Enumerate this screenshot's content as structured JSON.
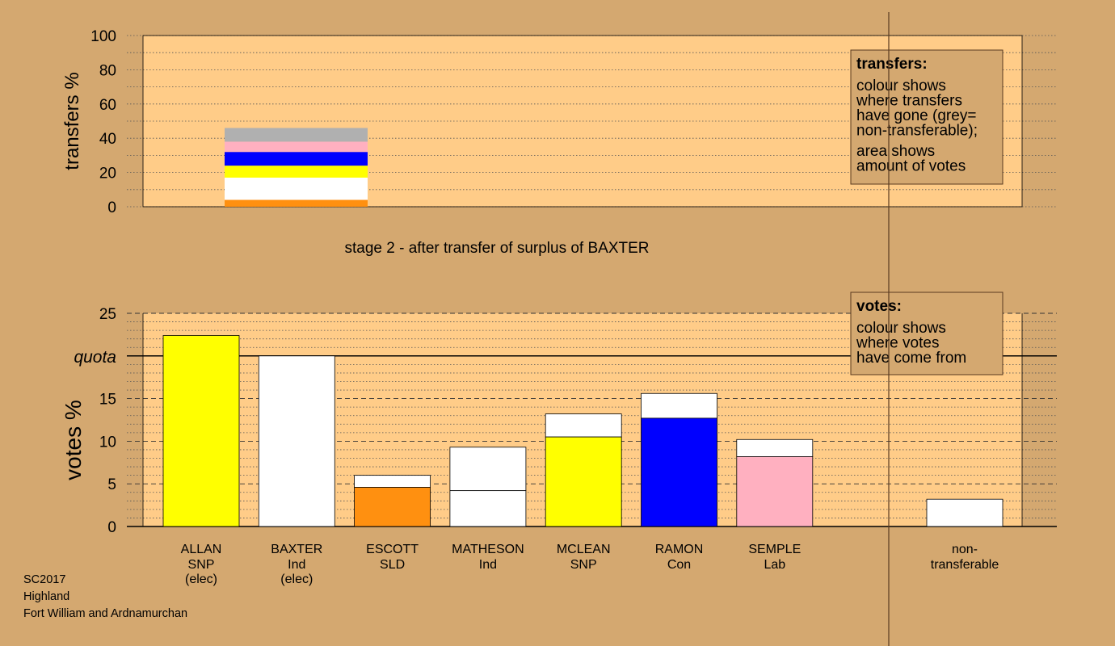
{
  "colors": {
    "page_background": "#d4a870",
    "plot_background": "#ffcc88",
    "SNP": "#ffff00",
    "Ind": "#ffffff",
    "SLD": "#ff9010",
    "Con": "#0000ff",
    "Lab": "#ffb0c0",
    "non-transferable": "#b0b0b0"
  },
  "subtitle": "stage 2 - after transfer of surplus of BAXTER",
  "footer": [
    "SC2017",
    "Highland",
    "Fort William and Ardnamurchan"
  ],
  "chart_data": [
    {
      "type": "bar",
      "name": "transfers",
      "ylabel": "transfers %",
      "ylim": [
        0,
        100
      ],
      "ticks": [
        0,
        20,
        40,
        60,
        80,
        100
      ],
      "grid": "dotted every 10",
      "legend": {
        "title": "transfers:",
        "placement": "top-right",
        "lines": [
          [
            "colour shows",
            "where transfers",
            "have gone (grey=",
            "non-transferable);"
          ],
          [
            "area shows",
            "amount of votes"
          ]
        ]
      },
      "stacked_transfers": {
        "source": "BAXTER",
        "segments": [
          {
            "to": "SEMPLE",
            "party": "Lab",
            "from": 0,
            "to_value": 0
          },
          {
            "to": "ESCOTT",
            "party": "SLD",
            "from": 0,
            "to_value": 4
          },
          {
            "to": "MATHESON",
            "party": "Ind",
            "from": 4,
            "to_value": 17
          },
          {
            "to": "MCLEAN",
            "party": "SNP",
            "from": 17,
            "to_value": 24
          },
          {
            "to": "RAMON",
            "party": "Con",
            "from": 24,
            "to_value": 32
          },
          {
            "to": "SEMPLE",
            "party": "Lab",
            "from": 32,
            "to_value": 38
          },
          {
            "to": "non-transferable",
            "party": "non-transferable",
            "from": 38,
            "to_value": 46
          }
        ]
      }
    },
    {
      "type": "bar",
      "name": "votes",
      "ylabel": "votes %",
      "ylim": [
        0,
        25
      ],
      "ticks": [
        0,
        5,
        10,
        15,
        20,
        25
      ],
      "quota": 20,
      "quota_label": "quota",
      "grid": "dashed every 5, dotted every 1",
      "legend": {
        "title": "votes:",
        "placement": "top-right",
        "lines": [
          [
            "colour shows",
            "where votes",
            "have come from"
          ]
        ]
      },
      "categories": [
        {
          "name": "ALLAN",
          "party": "SNP",
          "status": "(elec)",
          "first": 22.4,
          "total": 22.4
        },
        {
          "name": "BAXTER",
          "party": "Ind",
          "status": "(elec)",
          "first": 20,
          "total": 20
        },
        {
          "name": "ESCOTT",
          "party": "SLD",
          "status": "",
          "first": 4.6,
          "total": 6.0
        },
        {
          "name": "MATHESON",
          "party": "Ind",
          "status": "",
          "first": 4.2,
          "total": 9.3
        },
        {
          "name": "MCLEAN",
          "party": "SNP",
          "status": "",
          "first": 10.5,
          "total": 13.2
        },
        {
          "name": "RAMON",
          "party": "Con",
          "status": "",
          "first": 12.7,
          "total": 15.6
        },
        {
          "name": "SEMPLE",
          "party": "Lab",
          "status": "",
          "first": 8.2,
          "total": 10.2
        }
      ],
      "non_transferable": {
        "label": [
          "non-",
          "transferable"
        ],
        "total": 3.2
      }
    }
  ]
}
